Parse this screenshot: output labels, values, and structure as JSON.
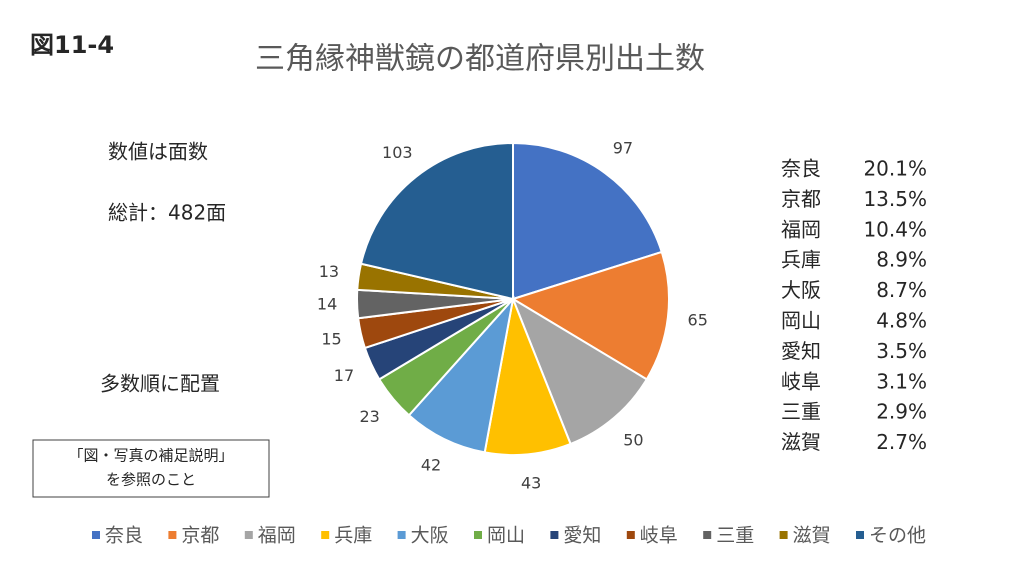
{
  "figure_label": "図11-4",
  "notes": {
    "unit": "数値は面数",
    "total": "総計：482面",
    "order": "多数順に配置",
    "ref_box": [
      "「図・写真の補足説明」",
      "を参照のこと"
    ]
  },
  "share_table": {
    "rows": [
      [
        "奈良",
        "20.1%"
      ],
      [
        "京都",
        "13.5%"
      ],
      [
        "福岡",
        "10.4%"
      ],
      [
        "兵庫",
        "8.9%"
      ],
      [
        "大阪",
        "8.7%"
      ],
      [
        "岡山",
        "4.8%"
      ],
      [
        "愛知",
        "3.5%"
      ],
      [
        "岐阜",
        "3.1%"
      ],
      [
        "三重",
        "2.9%"
      ],
      [
        "滋賀",
        "2.7%"
      ]
    ]
  },
  "chart_data": {
    "type": "pie",
    "title": "三角縁神獣鏡の都道府県別出土数",
    "categories": [
      "奈良",
      "京都",
      "福岡",
      "兵庫",
      "大阪",
      "岡山",
      "愛知",
      "岐阜",
      "三重",
      "滋賀",
      "その他"
    ],
    "values": [
      97,
      65,
      50,
      43,
      42,
      23,
      17,
      15,
      14,
      13,
      103
    ],
    "colors": [
      "#4472c4",
      "#ed7d31",
      "#a5a5a5",
      "#ffc000",
      "#5b9bd5",
      "#70ad47",
      "#264478",
      "#9e480e",
      "#636363",
      "#997300",
      "#255e91"
    ],
    "legend": "bottom"
  }
}
